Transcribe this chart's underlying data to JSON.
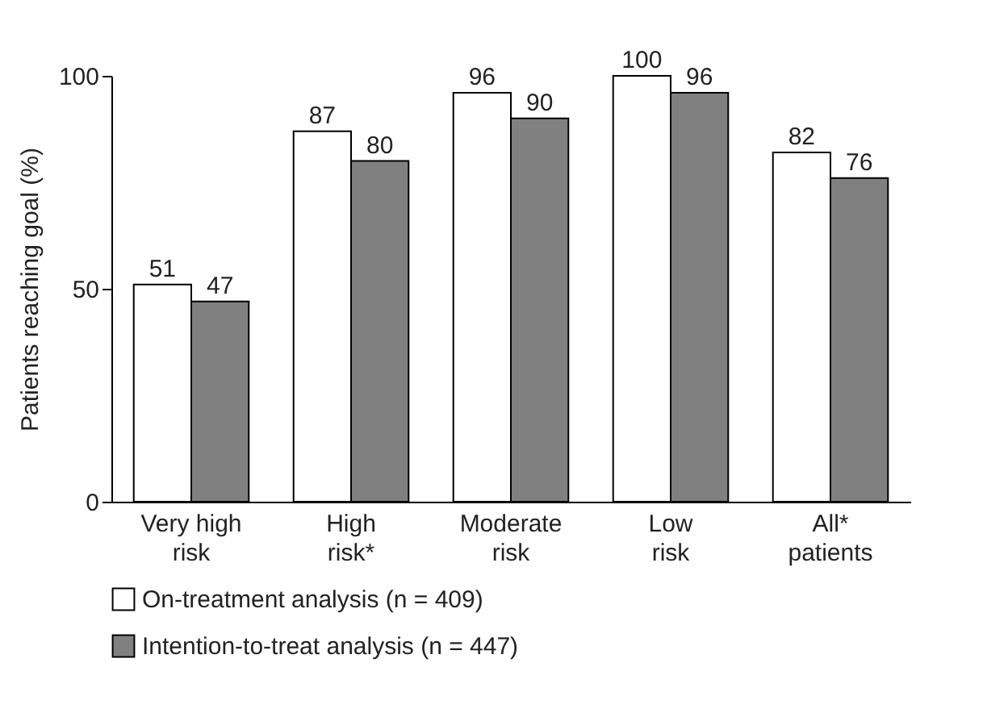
{
  "chart_data": {
    "type": "bar",
    "ylabel": "Patients reaching goal (%)",
    "categories": [
      "Very high risk",
      "High risk*",
      "Moderate risk",
      "Low risk",
      "All* patients"
    ],
    "series": [
      {
        "name": "On-treatment analysis (n = 409)",
        "color": "#ffffff",
        "values": [
          51,
          87,
          96,
          100,
          82
        ]
      },
      {
        "name": "Intention-to-treat analysis (n = 447)",
        "color": "#808080",
        "values": [
          47,
          80,
          90,
          96,
          76
        ]
      }
    ],
    "ylim": [
      0,
      100
    ],
    "yticks": [
      0,
      50,
      100
    ],
    "data_labels": true,
    "grid": false,
    "legend": "bottom"
  }
}
